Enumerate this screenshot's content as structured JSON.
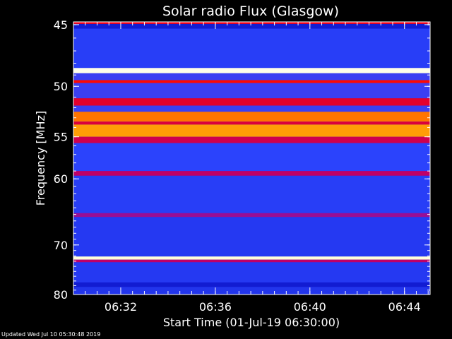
{
  "chart_data": {
    "type": "heatmap",
    "title": "Solar radio Flux (Glasgow)",
    "xlabel": "Start Time (01-Jul-19 06:30:00)",
    "ylabel": "Frequency [MHz]",
    "x_unit": "time (HH:MM)",
    "xlim": [
      "06:30:00",
      "06:45:05"
    ],
    "ylim": [
      80,
      44.8
    ],
    "x_ticks": [
      "06:32",
      "06:36",
      "06:40",
      "06:44"
    ],
    "y_ticks": [
      45,
      50,
      55,
      60,
      70,
      80
    ],
    "y_scale": "reciprocal",
    "colormap": [
      "#000000",
      "#0000b4",
      "#2d46ff",
      "#b4007a",
      "#ff0000",
      "#ff9a00",
      "#ffff96",
      "#ffffff"
    ],
    "bands": [
      {
        "f_low": 44.8,
        "f_high": 44.95,
        "intensity": 0.55
      },
      {
        "f_low": 44.95,
        "f_high": 45.3,
        "intensity": 0.2
      },
      {
        "f_low": 45.3,
        "f_high": 48.4,
        "intensity": 0.27
      },
      {
        "f_low": 48.4,
        "f_high": 48.85,
        "intensity": 0.97
      },
      {
        "f_low": 48.85,
        "f_high": 49.45,
        "intensity": 0.3
      },
      {
        "f_low": 49.45,
        "f_high": 49.7,
        "intensity": 0.58
      },
      {
        "f_low": 49.7,
        "f_high": 51.1,
        "intensity": 0.3
      },
      {
        "f_low": 51.1,
        "f_high": 51.8,
        "intensity": 0.52
      },
      {
        "f_low": 51.8,
        "f_high": 52.4,
        "intensity": 0.3
      },
      {
        "f_low": 52.4,
        "f_high": 53.4,
        "intensity": 0.68
      },
      {
        "f_low": 53.4,
        "f_high": 53.7,
        "intensity": 0.5
      },
      {
        "f_low": 53.7,
        "f_high": 55.0,
        "intensity": 0.72
      },
      {
        "f_low": 55.0,
        "f_high": 55.7,
        "intensity": 0.48
      },
      {
        "f_low": 55.7,
        "f_high": 59.0,
        "intensity": 0.28
      },
      {
        "f_low": 59.0,
        "f_high": 59.6,
        "intensity": 0.45
      },
      {
        "f_low": 59.6,
        "f_high": 64.8,
        "intensity": 0.27
      },
      {
        "f_low": 64.8,
        "f_high": 65.4,
        "intensity": 0.4
      },
      {
        "f_low": 65.4,
        "f_high": 72.1,
        "intensity": 0.26
      },
      {
        "f_low": 72.1,
        "f_high": 72.7,
        "intensity": 0.95
      },
      {
        "f_low": 72.7,
        "f_high": 73.2,
        "intensity": 0.45
      },
      {
        "f_low": 73.2,
        "f_high": 77.3,
        "intensity": 0.26
      },
      {
        "f_low": 77.3,
        "f_high": 78.3,
        "intensity": 0.2
      },
      {
        "f_low": 78.3,
        "f_high": 80.0,
        "intensity": 0.25
      }
    ]
  },
  "footer": "Updated Wed Jul 10 05:30:48 2019"
}
